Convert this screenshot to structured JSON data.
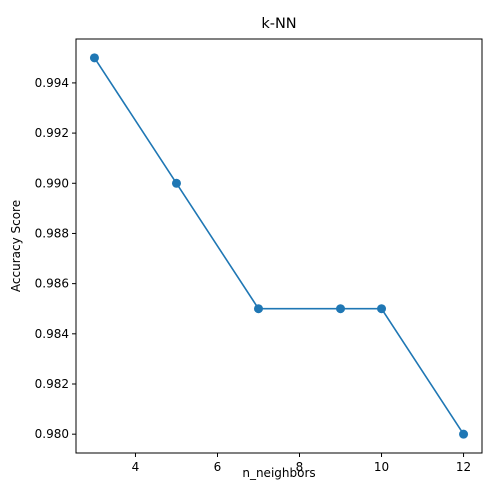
{
  "chart_data": {
    "type": "line",
    "title": "k-NN",
    "xlabel": "n_neighbors",
    "ylabel": "Accuracy Score",
    "x": [
      3,
      5,
      7,
      9,
      10,
      12
    ],
    "series": [
      {
        "values": [
          0.995,
          0.99,
          0.985,
          0.985,
          0.985,
          0.98
        ]
      }
    ],
    "xlim": [
      2.55,
      12.45
    ],
    "ylim": [
      0.97925,
      0.99575
    ],
    "xticks": [
      4,
      6,
      8,
      10,
      12
    ],
    "xtick_labels": [
      "4",
      "6",
      "8",
      "10",
      "12"
    ],
    "yticks": [
      0.98,
      0.982,
      0.984,
      0.986,
      0.988,
      0.99,
      0.992,
      0.994
    ],
    "ytick_labels": [
      "0.980",
      "0.982",
      "0.984",
      "0.986",
      "0.988",
      "0.990",
      "0.992",
      "0.994"
    ],
    "markers": true,
    "grid": false,
    "colors": {
      "line": "#1f77b4",
      "axis": "#000000"
    }
  }
}
